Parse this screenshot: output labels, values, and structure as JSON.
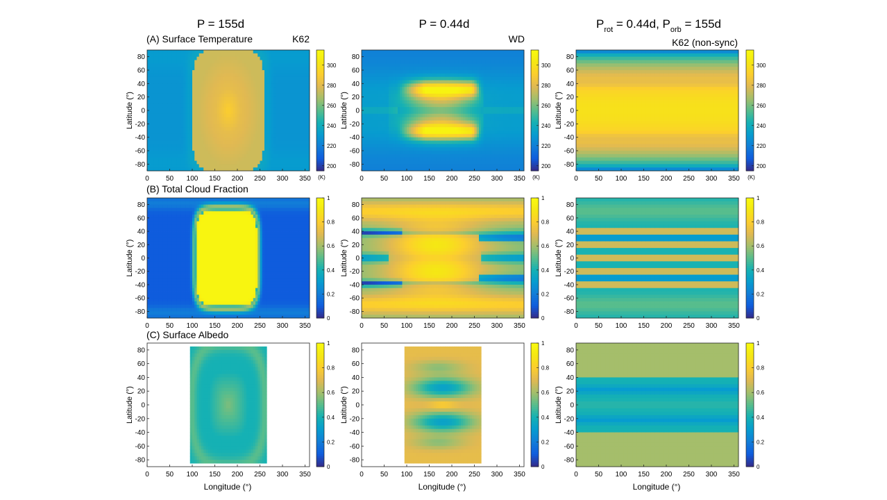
{
  "figure": {
    "column_titles": [
      {
        "main": "P = 155d"
      },
      {
        "main": "P = 0.44d"
      },
      {
        "main": "P",
        "sub1": "rot",
        "mid": " = 0.44d, P",
        "sub2": "orb",
        "tail": " = 155d"
      }
    ],
    "row_titles": [
      "(A) Surface Temperature",
      "(B) Total Cloud Fraction",
      "(C) Surface Albedo"
    ],
    "panel_tags": [
      "K62",
      "WD",
      "K62 (non-sync)"
    ],
    "ylabel": "Latitude (°)",
    "xlabel": "Longitude (°)",
    "xticks": [
      "0",
      "50",
      "100",
      "150",
      "200",
      "250",
      "300",
      "350"
    ],
    "yticks": [
      "80",
      "60",
      "40",
      "20",
      "0",
      "-20",
      "-40",
      "-60",
      "-80"
    ],
    "colorbar_ticks": {
      "temperature": [
        "300",
        "280",
        "260",
        "240",
        "220",
        "200"
      ],
      "fraction": [
        "1",
        "0.8",
        "0.6",
        "0.4",
        "0.2",
        "0"
      ]
    },
    "colorbar_unit": "(K)"
  },
  "chart_data": [
    {
      "type": "heatmap",
      "title": "(A) Surface Temperature",
      "case": "K62",
      "period": "P = 155d",
      "variable": "Surface Temperature",
      "unit": "K",
      "xlim": [
        0,
        360
      ],
      "ylim": [
        -90,
        90
      ],
      "clim": [
        195,
        315
      ],
      "description_values": {
        "substellar_center_lon": 180,
        "peak_K": 285,
        "dayside_K": 275,
        "nightside_K": 228
      }
    },
    {
      "type": "heatmap",
      "case": "WD",
      "period": "P = 0.44d",
      "variable": "Surface Temperature",
      "unit": "K",
      "xlim": [
        0,
        360
      ],
      "ylim": [
        -90,
        90
      ],
      "clim": [
        195,
        315
      ],
      "description_values": {
        "peak_K": 300,
        "equator_K": 262,
        "pole_K": 220
      }
    },
    {
      "type": "heatmap",
      "case": "K62 (non-sync)",
      "period": "Prot = 0.44d, Porb = 155d",
      "variable": "Surface Temperature",
      "unit": "K",
      "xlim": [
        0,
        360
      ],
      "ylim": [
        -90,
        90
      ],
      "clim": [
        195,
        315
      ],
      "description_values": {
        "equator_K": 300,
        "lat40_K": 280,
        "pole_K": 200
      }
    },
    {
      "type": "heatmap",
      "title": "(B) Total Cloud Fraction",
      "case": "K62",
      "variable": "Total Cloud Fraction",
      "xlim": [
        0,
        360
      ],
      "ylim": [
        -90,
        90
      ],
      "clim": [
        0,
        1
      ],
      "description_values": {
        "dayside": 0.97,
        "nightside": 0.1
      }
    },
    {
      "type": "heatmap",
      "case": "WD",
      "variable": "Total Cloud Fraction",
      "xlim": [
        0,
        360
      ],
      "ylim": [
        -90,
        90
      ],
      "clim": [
        0,
        1
      ],
      "description_values": {
        "max": 0.95,
        "min": 0.05
      }
    },
    {
      "type": "heatmap",
      "case": "K62 (non-sync)",
      "variable": "Total Cloud Fraction",
      "xlim": [
        0,
        360
      ],
      "ylim": [
        -90,
        90
      ],
      "clim": [
        0,
        1
      ],
      "description_values": {
        "bands_lat": [
          -40,
          -20,
          0,
          20,
          40
        ],
        "band_value": 0.85,
        "background": 0.4
      }
    },
    {
      "type": "heatmap",
      "title": "(C) Surface Albedo",
      "case": "K62",
      "variable": "Surface Albedo",
      "xlim": [
        0,
        360
      ],
      "ylim": [
        -90,
        90
      ],
      "clim": [
        0,
        1
      ],
      "description_values": {
        "land_lon_range": [
          95,
          265
        ],
        "land_lat_range": [
          -85,
          85
        ],
        "center": 0.55,
        "ring": 0.4
      }
    },
    {
      "type": "heatmap",
      "case": "WD",
      "variable": "Surface Albedo",
      "xlim": [
        0,
        360
      ],
      "ylim": [
        -90,
        90
      ],
      "clim": [
        0,
        1
      ],
      "description_values": {
        "land_lon_range": [
          95,
          265
        ],
        "land_lat_range": [
          -85,
          85
        ],
        "edge": 0.72,
        "min": 0.25
      }
    },
    {
      "type": "heatmap",
      "case": "K62 (non-sync)",
      "variable": "Surface Albedo",
      "xlim": [
        0,
        360
      ],
      "ylim": [
        -90,
        90
      ],
      "clim": [
        0,
        1
      ],
      "description_values": {
        "high_lat": 0.6,
        "lat20_band": 0.3,
        "equator": 0.4
      }
    }
  ]
}
